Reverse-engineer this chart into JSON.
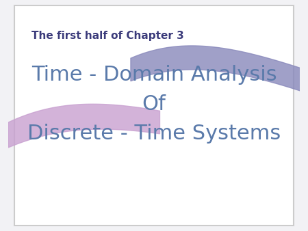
{
  "bg_color": "#f2f2f5",
  "border_color": "#cccccc",
  "subtitle_text": "The first half of Chapter 3",
  "subtitle_color": "#3a3a7a",
  "subtitle_fontsize": 11,
  "title_lines": [
    "Time - Domain Analysis",
    "Of",
    "Discrete - Time Systems"
  ],
  "title_color": "#5a7aaa",
  "title_fontsize": 22,
  "ribbon1_color": "#c8a0d0",
  "ribbon2_color": "#8888bb"
}
